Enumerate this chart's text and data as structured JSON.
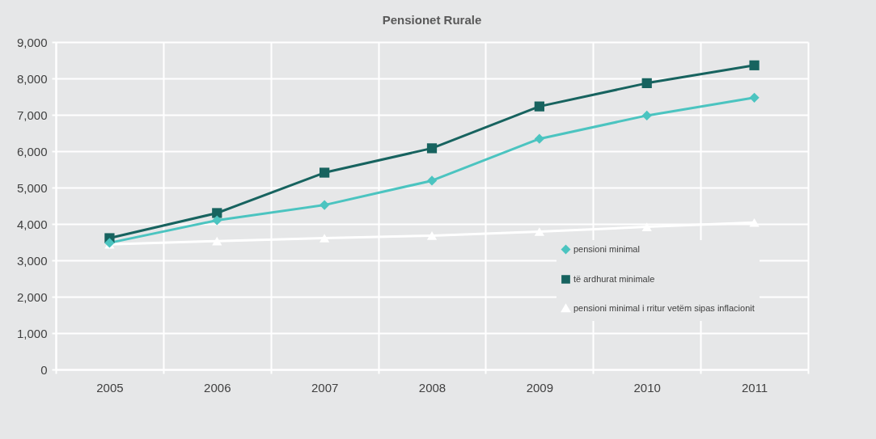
{
  "chart_data": {
    "type": "line",
    "title": "Pensionet Rurale",
    "categories": [
      "2005",
      "2006",
      "2007",
      "2008",
      "2009",
      "2010",
      "2011"
    ],
    "series": [
      {
        "name": "pensioni minimal",
        "color": "#4bc4c0",
        "marker": "diamond",
        "values": [
          3480,
          4100,
          4520,
          5190,
          6340,
          6980,
          7470
        ]
      },
      {
        "name": "të ardhurat minimale",
        "color": "#17635f",
        "marker": "square",
        "values": [
          3610,
          4300,
          5410,
          6080,
          7230,
          7870,
          8360
        ]
      },
      {
        "name": "pensioni minimal i rritur vetëm sipas inflacionit",
        "color": "#ffffff",
        "marker": "triangle",
        "values": [
          3440,
          3530,
          3610,
          3680,
          3790,
          3920,
          4040
        ]
      }
    ],
    "ylim": [
      0,
      9000
    ],
    "yticks": [
      {
        "value": 0,
        "label": "0"
      },
      {
        "value": 1000,
        "label": "1,000"
      },
      {
        "value": 2000,
        "label": "2,000"
      },
      {
        "value": 3000,
        "label": "3,000"
      },
      {
        "value": 4000,
        "label": "4,000"
      },
      {
        "value": 5000,
        "label": "5,000"
      },
      {
        "value": 6000,
        "label": "6,000"
      },
      {
        "value": 7000,
        "label": "7,000"
      },
      {
        "value": 8000,
        "label": "8,000"
      },
      {
        "value": 9000,
        "label": "9,000"
      }
    ],
    "grid": true,
    "legend": "bottom right"
  }
}
